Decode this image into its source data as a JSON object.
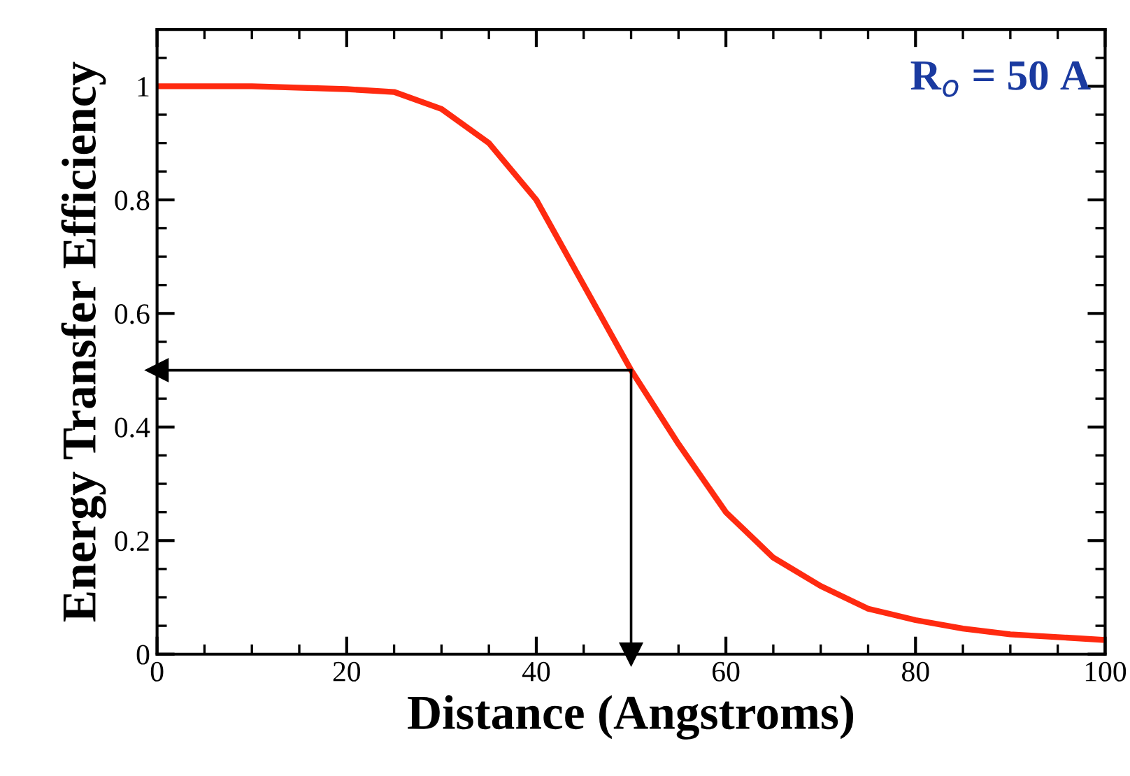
{
  "chart_data": {
    "type": "line",
    "xlabel": "Distance (Angstroms)",
    "ylabel": "Energy Transfer Efficiency",
    "x": [
      0,
      10,
      20,
      25,
      30,
      35,
      40,
      45,
      50,
      55,
      60,
      65,
      70,
      75,
      80,
      85,
      90,
      95,
      100
    ],
    "series": [
      {
        "color": "#ff2a10",
        "values": [
          1,
          1,
          0.995,
          0.99,
          0.96,
          0.9,
          0.8,
          0.65,
          0.5,
          0.37,
          0.25,
          0.17,
          0.12,
          0.08,
          0.06,
          0.045,
          0.035,
          0.03,
          0.025
        ]
      }
    ],
    "xlim": [
      0,
      100
    ],
    "xticks": [
      0,
      20,
      40,
      60,
      80,
      100
    ],
    "ylim": [
      0,
      1.1
    ],
    "yticks": [
      0,
      0.2,
      0.4,
      0.6,
      0.8,
      1
    ],
    "ref_lines": [
      {
        "axis": "y",
        "value": 0.5,
        "color": "#000000"
      },
      {
        "axis": "x",
        "value": 50,
        "color": "#000000"
      }
    ],
    "annotations": [
      "R$_{o}$ = 50 A"
    ],
    "grid": false,
    "legend": false,
    "marker": "none",
    "line_style": "solid"
  }
}
